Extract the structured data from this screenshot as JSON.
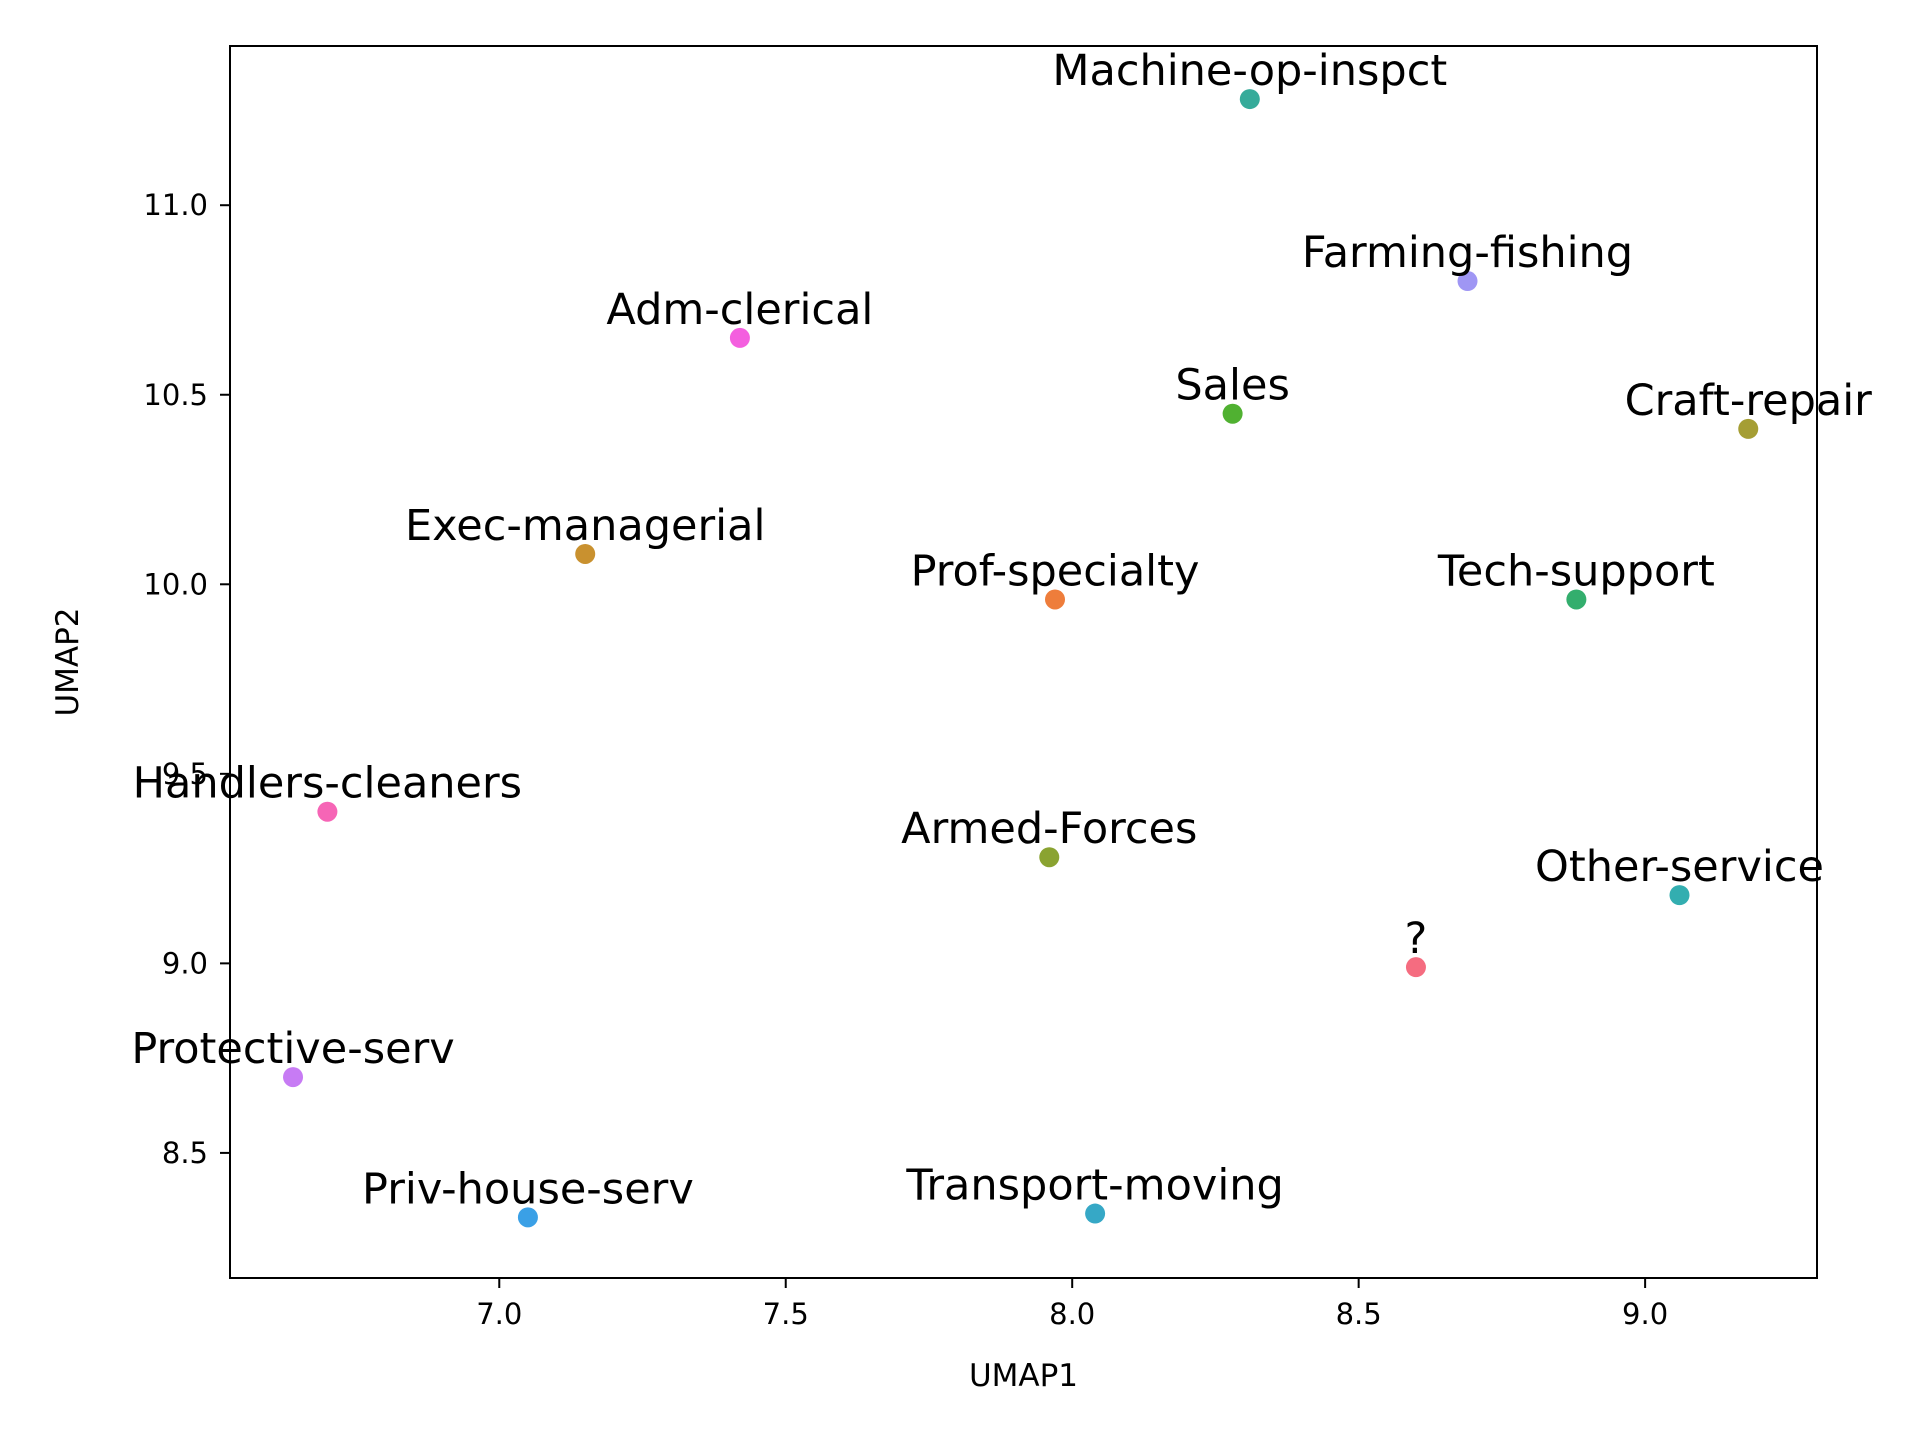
{
  "chart_data": {
    "type": "scatter",
    "title": "",
    "xlabel": "UMAP1",
    "ylabel": "UMAP2",
    "xlim": [
      6.53,
      9.3
    ],
    "ylim": [
      8.17,
      11.42
    ],
    "xticks": [
      {
        "value": 7.0,
        "label": "7.0"
      },
      {
        "value": 7.5,
        "label": "7.5"
      },
      {
        "value": 8.0,
        "label": "8.0"
      },
      {
        "value": 8.5,
        "label": "8.5"
      },
      {
        "value": 9.0,
        "label": "9.0"
      }
    ],
    "yticks": [
      {
        "value": 8.5,
        "label": "8.5"
      },
      {
        "value": 9.0,
        "label": "9.0"
      },
      {
        "value": 9.5,
        "label": "9.5"
      },
      {
        "value": 10.0,
        "label": "10.0"
      },
      {
        "value": 10.5,
        "label": "10.5"
      },
      {
        "value": 11.0,
        "label": "11.0"
      }
    ],
    "grid": false,
    "points": [
      {
        "label": "Machine-op-inspct",
        "x": 8.31,
        "y": 11.28,
        "color": "#36ab9a"
      },
      {
        "label": "Farming-fishing",
        "x": 8.69,
        "y": 10.8,
        "color": "#9f96f4"
      },
      {
        "label": "Adm-clerical",
        "x": 7.42,
        "y": 10.65,
        "color": "#f45fdf"
      },
      {
        "label": "Sales",
        "x": 8.28,
        "y": 10.45,
        "color": "#50b131"
      },
      {
        "label": "Craft-repair",
        "x": 9.18,
        "y": 10.41,
        "color": "#a59e34"
      },
      {
        "label": "Exec-managerial",
        "x": 7.15,
        "y": 10.08,
        "color": "#c9912f"
      },
      {
        "label": "Prof-specialty",
        "x": 7.97,
        "y": 9.96,
        "color": "#ee7d3b"
      },
      {
        "label": "Tech-support",
        "x": 8.88,
        "y": 9.96,
        "color": "#33ae6d"
      },
      {
        "label": "Handlers-cleaners",
        "x": 6.7,
        "y": 9.4,
        "color": "#f665b6"
      },
      {
        "label": "Armed-Forces",
        "x": 7.96,
        "y": 9.28,
        "color": "#8aa331"
      },
      {
        "label": "Other-service",
        "x": 9.06,
        "y": 9.18,
        "color": "#33aeb0"
      },
      {
        "label": "?",
        "x": 8.6,
        "y": 8.99,
        "color": "#f56c80"
      },
      {
        "label": "Protective-serv",
        "x": 6.64,
        "y": 8.7,
        "color": "#c77bf4"
      },
      {
        "label": "Priv-house-serv",
        "x": 7.05,
        "y": 8.33,
        "color": "#3aa0e6"
      },
      {
        "label": "Transport-moving",
        "x": 8.04,
        "y": 8.34,
        "color": "#36a8c6"
      }
    ]
  }
}
